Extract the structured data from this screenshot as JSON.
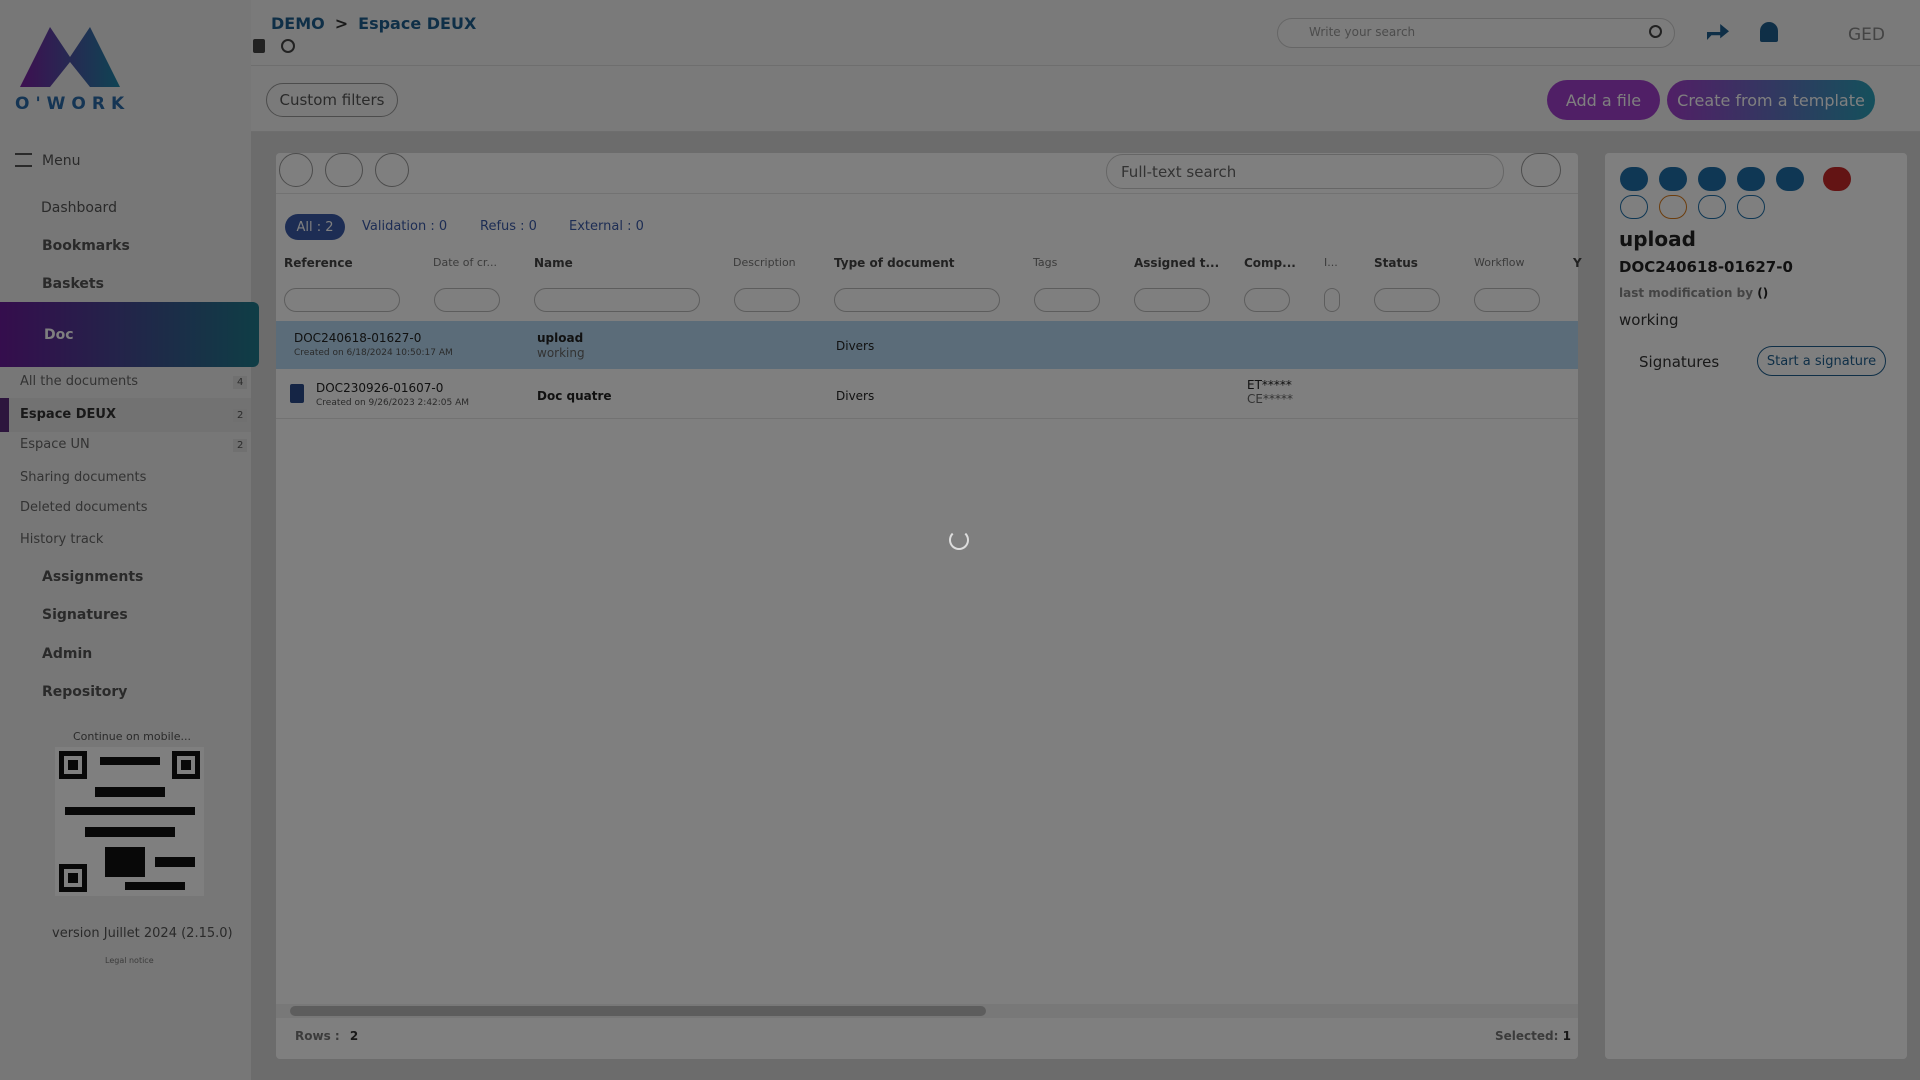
{
  "header": {
    "logo_text": "O'WORK",
    "breadcrumb": [
      "DEMO",
      "Espace DEUX"
    ],
    "search_placeholder": "Write your search",
    "module": "GED"
  },
  "toolbar": {
    "custom_filters": "Custom filters",
    "add_file": "Add a file",
    "create_template": "Create from a template"
  },
  "sidebar": {
    "menu": "Menu",
    "dashboard": "Dashboard",
    "bookmarks": "Bookmarks",
    "baskets": "Baskets",
    "doc": "Doc",
    "doc_items": [
      {
        "label": "All the documents",
        "count": 4
      },
      {
        "label": "Espace DEUX",
        "count": 2
      },
      {
        "label": "Espace UN",
        "count": 2
      },
      {
        "label": "Sharing documents"
      },
      {
        "label": "Deleted documents"
      },
      {
        "label": "History track"
      }
    ],
    "sections": [
      "Assignments",
      "Signatures",
      "Admin",
      "Repository"
    ],
    "mobile": "Continue on mobile...",
    "version": "version Juillet 2024 (2.15.0)",
    "legal": "Legal notice"
  },
  "grid": {
    "fulltext_placeholder": "Full-text search",
    "tabs": [
      {
        "label": "All : 2"
      },
      {
        "label": "Validation : 0"
      },
      {
        "label": "Refus : 0"
      },
      {
        "label": "External : 0"
      }
    ],
    "columns": [
      "Reference",
      "Date of cr...",
      "Name",
      "Description",
      "Type of document",
      "Tags",
      "Assigned t...",
      "Comp...",
      "I...",
      "Status",
      "Workflow",
      "Y"
    ],
    "rows": [
      {
        "reference": "DOC240618-01627-0",
        "created": "Created on 6/18/2024 10:50:17 AM",
        "name": "upload",
        "status": "working",
        "type": "Divers"
      },
      {
        "reference": "DOC230926-01607-0",
        "created": "Created on 9/26/2023 2:42:05 AM",
        "name": "Doc quatre",
        "type": "Divers",
        "comp": [
          "ET*****",
          "CE*****"
        ]
      }
    ],
    "rows_label": "Rows :",
    "rows_count": 2,
    "selected_label": "Selected:",
    "selected_count": 1
  },
  "details": {
    "name": "upload",
    "reference": "DOC240618-01627-0",
    "last_mod_label": "last modification by",
    "last_mod_value": "()",
    "status": "working",
    "signatures": "Signatures",
    "start_signature": "Start a signature"
  }
}
